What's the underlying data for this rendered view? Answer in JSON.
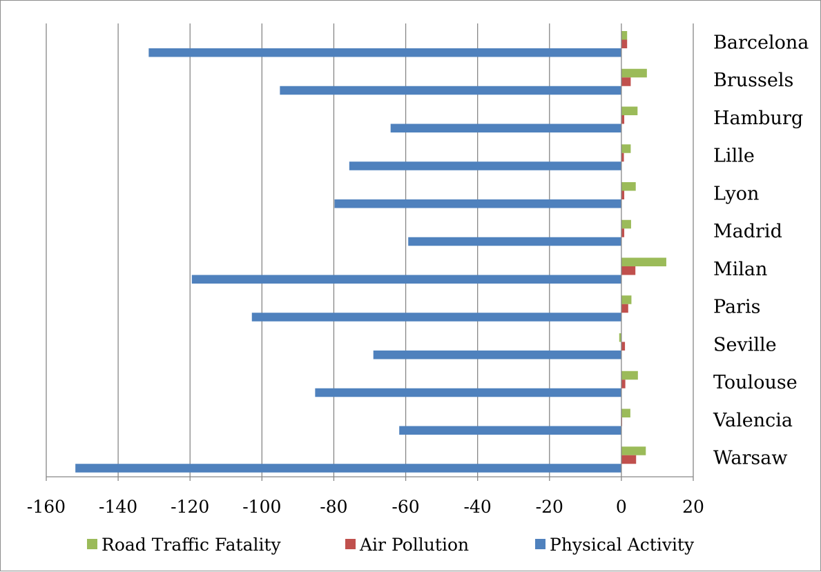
{
  "chart_data": {
    "type": "bar",
    "orientation": "horizontal",
    "categories": [
      "Barcelona",
      "Brussels",
      "Hamburg",
      "Lille",
      "Lyon",
      "Madrid",
      "Milan",
      "Paris",
      "Seville",
      "Toulouse",
      "Valencia",
      "Warsaw"
    ],
    "series": [
      {
        "name": "Road Traffic Fatality",
        "color": "#9bbb59",
        "values": [
          1.6,
          7.1,
          4.5,
          2.6,
          4.0,
          2.7,
          12.5,
          2.8,
          -0.6,
          4.6,
          2.5,
          6.8
        ]
      },
      {
        "name": "Air Pollution",
        "color": "#c0504d",
        "values": [
          1.6,
          2.6,
          0.8,
          0.7,
          0.8,
          0.8,
          3.9,
          1.9,
          1.0,
          1.1,
          0.2,
          4.1
        ]
      },
      {
        "name": "Physical Activity",
        "color": "#4f81bd",
        "values": [
          -131.5,
          -95.0,
          -64.2,
          -75.7,
          -79.8,
          -59.3,
          -119.5,
          -102.8,
          -69.0,
          -85.2,
          -61.8,
          -151.9
        ]
      }
    ],
    "xlim": [
      -160,
      20
    ],
    "xticks": [
      -160,
      -140,
      -120,
      -100,
      -80,
      -60,
      -40,
      -20,
      0,
      20
    ],
    "grid": true,
    "legend": "bottom",
    "title": "",
    "xlabel": "",
    "ylabel": ""
  }
}
